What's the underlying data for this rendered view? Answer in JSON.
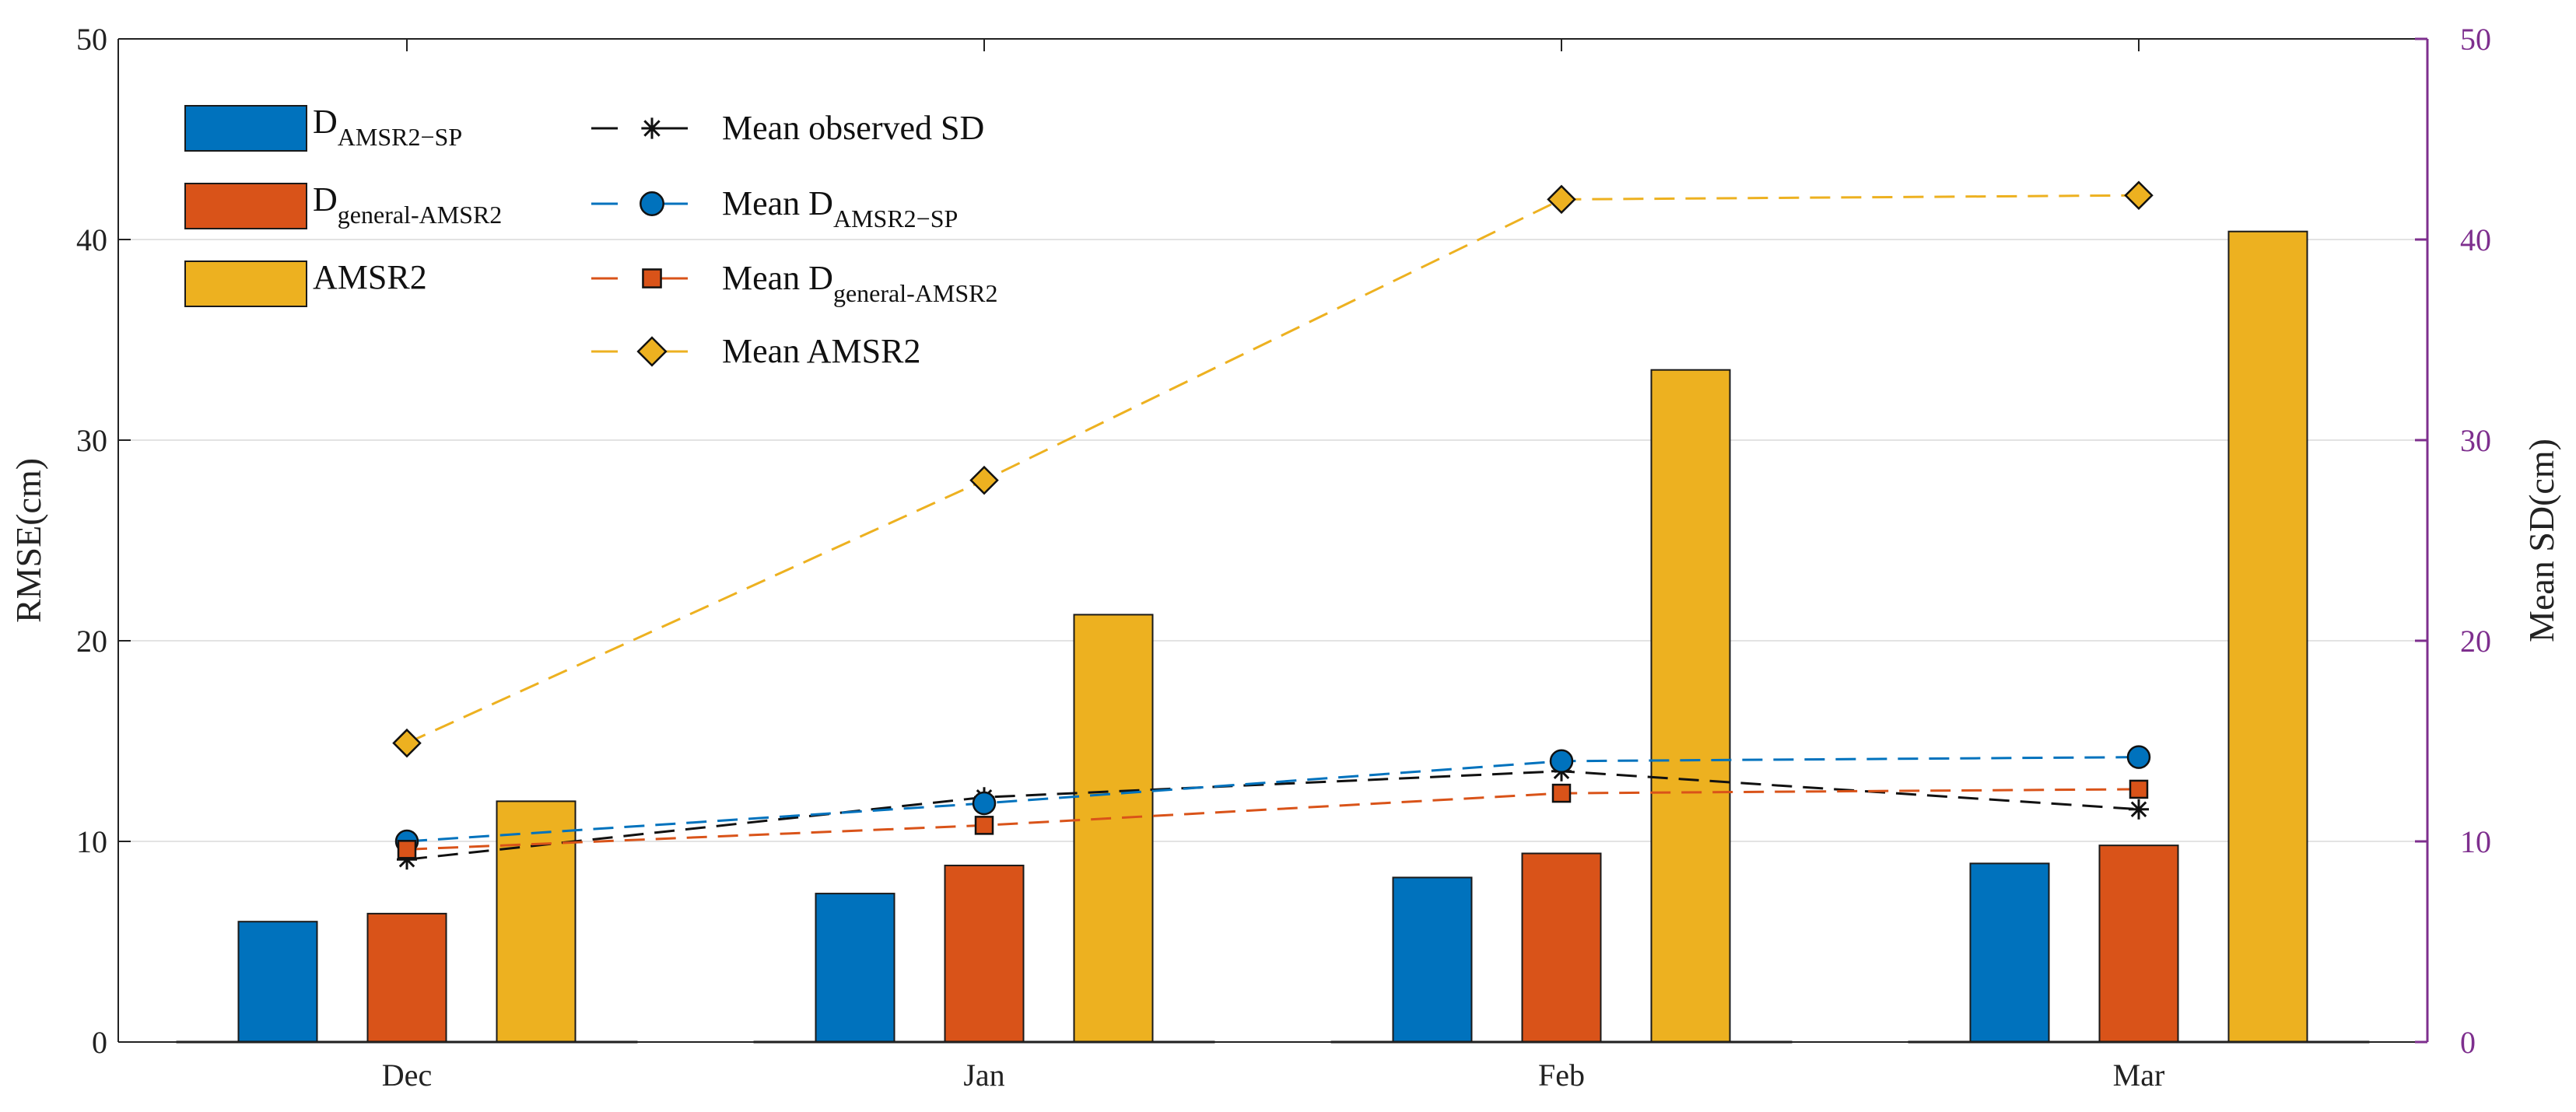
{
  "chart_data": {
    "type": "bar",
    "title": "",
    "categories": [
      "Dec",
      "Jan",
      "Feb",
      "Mar"
    ],
    "ylabel": "RMSE(cm)",
    "ylim": [
      0,
      50
    ],
    "yticks": [
      "0",
      "10",
      "20",
      "30",
      "40",
      "50"
    ],
    "y2label": "Mean SD(cm)",
    "y2lim": [
      0,
      50
    ],
    "y2ticks": [
      "0",
      "10",
      "20",
      "30",
      "40",
      "50"
    ],
    "grid": "horizontal",
    "legend_placement": "top-left",
    "series": [
      {
        "name": "D AMSR2-SP",
        "label_main": "D",
        "label_sub": "AMSR2−SP",
        "kind": "bar",
        "axis": "left",
        "color": "#0072bd",
        "values": [
          6.0,
          7.4,
          8.2,
          8.9
        ]
      },
      {
        "name": "D general-AMSR2",
        "label_main": "D",
        "label_sub": "general-AMSR2",
        "kind": "bar",
        "axis": "left",
        "color": "#d95319",
        "values": [
          6.4,
          8.8,
          9.4,
          9.8
        ]
      },
      {
        "name": "AMSR2",
        "label_main": "AMSR2",
        "label_sub": "",
        "kind": "bar",
        "axis": "left",
        "color": "#edb120",
        "values": [
          12.0,
          21.3,
          33.5,
          40.4
        ]
      }
    ],
    "lines": [
      {
        "name": "Mean observed SD",
        "label_main": "Mean observed SD",
        "label_sub": "",
        "axis": "right",
        "color": "#111111",
        "marker": "star",
        "values": [
          9.1,
          12.2,
          13.5,
          11.6
        ]
      },
      {
        "name": "Mean D AMSR2-SP",
        "label_main": "Mean D",
        "label_sub": "AMSR2−SP",
        "axis": "right",
        "color": "#0072bd",
        "marker": "circle",
        "values": [
          10.0,
          11.9,
          14.0,
          14.2
        ]
      },
      {
        "name": "Mean D general-AMSR2",
        "label_main": "Mean D",
        "label_sub": "general-AMSR2",
        "axis": "right",
        "color": "#d95319",
        "marker": "square",
        "values": [
          9.6,
          10.8,
          12.4,
          12.6
        ]
      },
      {
        "name": "Mean AMSR2",
        "label_main": "Mean AMSR2",
        "label_sub": "",
        "axis": "right",
        "color": "#edb120",
        "marker": "diamond",
        "values": [
          14.9,
          28.0,
          42.0,
          42.2
        ]
      }
    ],
    "colors": {
      "axis": "#222222",
      "right_axis": "#7e2f8e",
      "grid": "#e3e3e3"
    }
  }
}
